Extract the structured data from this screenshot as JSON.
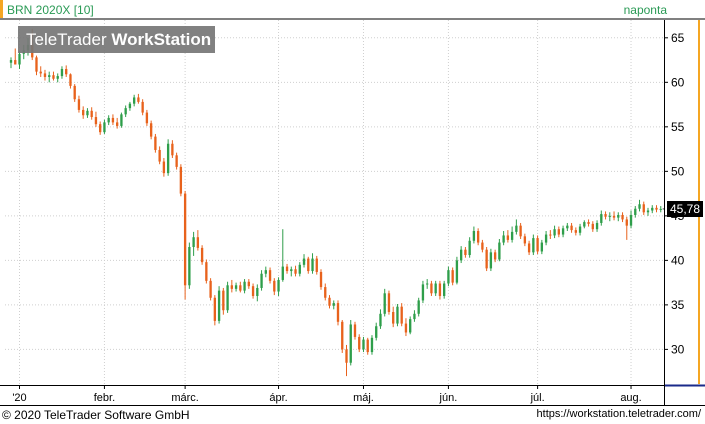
{
  "header": {
    "symbol": "BRN 2020X [10]",
    "interval": "naponta"
  },
  "logo": {
    "brand": "TeleTrader",
    "product": "WorkStation"
  },
  "footer": {
    "copyright": "© 2020 TeleTrader Software GmbH",
    "url": "https://workstation.teletrader.com/"
  },
  "colors": {
    "up": "#2e9e4a",
    "down": "#e8621c",
    "accent": "#f5a623",
    "grid": "#cfcfcf"
  },
  "chart_data": {
    "type": "candlestick",
    "ylim": [
      26,
      67
    ],
    "yticks": [
      30,
      35,
      40,
      45,
      50,
      55,
      60,
      65
    ],
    "last_price_label": "45,78",
    "x_labels": [
      {
        "label": "'20",
        "index": 2
      },
      {
        "label": "febr.",
        "index": 22
      },
      {
        "label": "márc.",
        "index": 41
      },
      {
        "label": "ápr.",
        "index": 63
      },
      {
        "label": "máj.",
        "index": 83
      },
      {
        "label": "jún.",
        "index": 103
      },
      {
        "label": "júl.",
        "index": 124
      },
      {
        "label": "aug.",
        "index": 146
      }
    ],
    "candles": [
      [
        62.2,
        62.8,
        61.6,
        62.5
      ],
      [
        62.5,
        63.8,
        62.0,
        62.0
      ],
      [
        62.0,
        63.5,
        61.5,
        63.2
      ],
      [
        63.2,
        64.2,
        62.6,
        63.6
      ],
      [
        63.6,
        65.0,
        63.0,
        64.2
      ],
      [
        64.2,
        66.0,
        62.5,
        62.8
      ],
      [
        62.8,
        63.0,
        60.8,
        61.2
      ],
      [
        61.2,
        61.8,
        60.6,
        61.0
      ],
      [
        61.0,
        61.4,
        60.2,
        60.6
      ],
      [
        60.6,
        61.2,
        60.0,
        60.8
      ],
      [
        60.8,
        61.2,
        60.2,
        60.4
      ],
      [
        60.4,
        61.0,
        60.0,
        60.7
      ],
      [
        60.7,
        61.8,
        60.4,
        61.5
      ],
      [
        61.5,
        61.9,
        60.6,
        60.9
      ],
      [
        60.9,
        61.0,
        59.3,
        59.6
      ],
      [
        59.6,
        59.8,
        57.8,
        58.1
      ],
      [
        58.1,
        58.5,
        56.6,
        56.9
      ],
      [
        56.9,
        57.3,
        55.9,
        56.3
      ],
      [
        56.3,
        57.1,
        56.0,
        56.8
      ],
      [
        56.8,
        57.2,
        55.8,
        56.1
      ],
      [
        56.1,
        56.7,
        55.0,
        55.3
      ],
      [
        55.3,
        55.6,
        54.1,
        54.4
      ],
      [
        54.4,
        55.8,
        54.2,
        55.5
      ],
      [
        55.5,
        56.3,
        55.2,
        56.0
      ],
      [
        56.0,
        56.4,
        55.2,
        55.5
      ],
      [
        55.5,
        56.0,
        54.8,
        55.1
      ],
      [
        55.1,
        56.6,
        54.9,
        56.4
      ],
      [
        56.4,
        57.4,
        56.1,
        57.1
      ],
      [
        57.1,
        57.8,
        56.8,
        57.6
      ],
      [
        57.6,
        58.6,
        57.3,
        58.3
      ],
      [
        58.3,
        58.7,
        57.6,
        57.8
      ],
      [
        57.8,
        58.1,
        56.3,
        56.6
      ],
      [
        56.6,
        56.9,
        55.1,
        55.4
      ],
      [
        55.4,
        55.7,
        53.6,
        53.9
      ],
      [
        53.9,
        54.2,
        52.1,
        52.4
      ],
      [
        52.4,
        52.8,
        50.8,
        51.1
      ],
      [
        51.1,
        51.5,
        49.4,
        49.8
      ],
      [
        49.8,
        53.6,
        49.5,
        53.1
      ],
      [
        53.1,
        53.5,
        51.5,
        51.8
      ],
      [
        51.8,
        52.1,
        50.2,
        50.5
      ],
      [
        50.5,
        50.8,
        47.2,
        47.5
      ],
      [
        47.5,
        47.8,
        35.6,
        37.2
      ],
      [
        37.2,
        42.0,
        36.8,
        41.5
      ],
      [
        41.5,
        43.2,
        40.5,
        42.6
      ],
      [
        42.6,
        43.4,
        41.1,
        41.4
      ],
      [
        41.4,
        41.7,
        39.5,
        39.8
      ],
      [
        39.8,
        40.1,
        37.4,
        37.7
      ],
      [
        37.7,
        38.0,
        35.5,
        35.8
      ],
      [
        35.8,
        36.1,
        32.7,
        33.2
      ],
      [
        33.2,
        37.1,
        32.9,
        36.6
      ],
      [
        36.6,
        36.9,
        33.9,
        34.4
      ],
      [
        34.4,
        37.6,
        34.1,
        37.2
      ],
      [
        37.2,
        37.8,
        36.4,
        36.8
      ],
      [
        36.8,
        37.5,
        36.5,
        37.2
      ],
      [
        37.2,
        37.6,
        36.4,
        36.6
      ],
      [
        36.6,
        37.9,
        36.3,
        37.6
      ],
      [
        37.6,
        37.9,
        36.8,
        37.1
      ],
      [
        37.1,
        37.4,
        35.7,
        36.0
      ],
      [
        36.0,
        37.3,
        35.4,
        36.9
      ],
      [
        36.9,
        38.9,
        36.6,
        38.5
      ],
      [
        38.5,
        39.3,
        38.1,
        38.9
      ],
      [
        38.9,
        39.2,
        37.4,
        37.7
      ],
      [
        37.7,
        38.0,
        36.1,
        36.5
      ],
      [
        36.5,
        38.1,
        36.0,
        37.8
      ],
      [
        37.8,
        43.5,
        37.6,
        39.3
      ],
      [
        39.3,
        39.6,
        38.5,
        38.8
      ],
      [
        38.8,
        39.3,
        38.2,
        39.0
      ],
      [
        39.0,
        39.4,
        38.2,
        38.5
      ],
      [
        38.5,
        39.8,
        38.2,
        39.5
      ],
      [
        39.5,
        40.7,
        39.2,
        40.2
      ],
      [
        40.2,
        40.4,
        38.5,
        38.8
      ],
      [
        38.8,
        40.8,
        38.5,
        40.2
      ],
      [
        40.2,
        40.5,
        38.4,
        38.7
      ],
      [
        38.7,
        39.0,
        36.7,
        37.0
      ],
      [
        37.0,
        37.4,
        35.5,
        35.8
      ],
      [
        35.8,
        36.1,
        34.6,
        34.9
      ],
      [
        34.9,
        35.5,
        34.5,
        35.2
      ],
      [
        35.2,
        35.5,
        32.7,
        33.1
      ],
      [
        33.1,
        33.3,
        29.6,
        30.0
      ],
      [
        30.0,
        30.5,
        27.0,
        28.5
      ],
      [
        28.5,
        33.3,
        28.2,
        32.8
      ],
      [
        32.8,
        33.1,
        31.1,
        31.4
      ],
      [
        31.4,
        31.7,
        29.7,
        30.0
      ],
      [
        30.0,
        31.4,
        29.7,
        31.1
      ],
      [
        31.1,
        31.3,
        29.4,
        29.7
      ],
      [
        29.7,
        31.6,
        29.4,
        31.3
      ],
      [
        31.3,
        33.0,
        31.0,
        32.6
      ],
      [
        32.6,
        34.5,
        32.3,
        34.0
      ],
      [
        34.0,
        36.8,
        33.7,
        36.3
      ],
      [
        36.3,
        36.6,
        33.9,
        34.2
      ],
      [
        34.2,
        34.8,
        32.5,
        32.9
      ],
      [
        32.9,
        35.1,
        32.6,
        34.8
      ],
      [
        34.8,
        35.2,
        32.6,
        32.9
      ],
      [
        32.9,
        33.5,
        31.5,
        31.9
      ],
      [
        31.9,
        33.7,
        31.7,
        33.4
      ],
      [
        33.4,
        34.4,
        33.1,
        34.0
      ],
      [
        34.0,
        35.8,
        33.7,
        35.5
      ],
      [
        35.5,
        37.7,
        35.2,
        37.3
      ],
      [
        37.3,
        37.9,
        36.8,
        37.4
      ],
      [
        37.4,
        37.7,
        36.0,
        36.3
      ],
      [
        36.3,
        37.7,
        36.0,
        37.4
      ],
      [
        37.4,
        37.7,
        35.6,
        36.0
      ],
      [
        36.0,
        37.7,
        35.7,
        37.4
      ],
      [
        37.4,
        39.3,
        37.1,
        38.9
      ],
      [
        38.9,
        39.2,
        37.2,
        37.5
      ],
      [
        37.5,
        40.4,
        37.3,
        40.0
      ],
      [
        40.0,
        41.6,
        39.7,
        41.2
      ],
      [
        41.2,
        41.5,
        40.3,
        40.6
      ],
      [
        40.6,
        42.6,
        40.3,
        42.2
      ],
      [
        42.2,
        43.8,
        41.9,
        43.3
      ],
      [
        43.3,
        43.6,
        41.7,
        42.0
      ],
      [
        42.0,
        42.3,
        40.9,
        41.2
      ],
      [
        41.2,
        41.5,
        38.8,
        39.1
      ],
      [
        39.1,
        41.3,
        38.8,
        40.9
      ],
      [
        40.9,
        41.2,
        39.8,
        40.1
      ],
      [
        40.1,
        42.4,
        39.9,
        42.0
      ],
      [
        42.0,
        43.3,
        41.7,
        42.8
      ],
      [
        42.8,
        43.4,
        42.0,
        42.3
      ],
      [
        42.3,
        43.8,
        42.0,
        43.2
      ],
      [
        43.2,
        44.6,
        42.9,
        43.9
      ],
      [
        43.9,
        44.2,
        42.4,
        42.7
      ],
      [
        42.7,
        43.0,
        41.6,
        41.9
      ],
      [
        41.9,
        42.2,
        40.6,
        40.9
      ],
      [
        40.9,
        42.9,
        40.6,
        42.5
      ],
      [
        42.5,
        42.8,
        40.7,
        41.0
      ],
      [
        41.0,
        42.3,
        40.7,
        42.0
      ],
      [
        42.0,
        43.3,
        41.7,
        42.9
      ],
      [
        42.9,
        43.4,
        42.4,
        42.8
      ],
      [
        42.8,
        43.9,
        42.5,
        43.5
      ],
      [
        43.5,
        43.8,
        42.6,
        42.9
      ],
      [
        42.9,
        43.9,
        42.6,
        43.6
      ],
      [
        43.6,
        44.2,
        43.3,
        43.9
      ],
      [
        43.9,
        44.2,
        43.1,
        43.4
      ],
      [
        43.4,
        43.7,
        42.8,
        43.1
      ],
      [
        43.1,
        44.1,
        42.8,
        43.8
      ],
      [
        43.8,
        44.5,
        43.6,
        44.3
      ],
      [
        44.3,
        44.6,
        43.8,
        44.1
      ],
      [
        44.1,
        44.4,
        43.2,
        43.5
      ],
      [
        43.5,
        44.5,
        43.2,
        44.2
      ],
      [
        44.2,
        45.6,
        43.9,
        45.2
      ],
      [
        45.2,
        45.5,
        44.6,
        44.9
      ],
      [
        44.9,
        45.4,
        44.4,
        45.0
      ],
      [
        45.0,
        45.5,
        44.5,
        44.8
      ],
      [
        44.8,
        45.4,
        44.4,
        45.1
      ],
      [
        45.1,
        45.4,
        44.3,
        44.6
      ],
      [
        44.6,
        44.9,
        42.3,
        43.9
      ],
      [
        43.9,
        45.6,
        43.6,
        45.1
      ],
      [
        45.1,
        46.1,
        44.8,
        45.8
      ],
      [
        45.8,
        46.8,
        45.5,
        46.3
      ],
      [
        46.3,
        46.6,
        45.1,
        45.4
      ],
      [
        45.4,
        45.9,
        45.0,
        45.6
      ],
      [
        45.6,
        46.2,
        45.3,
        45.9
      ],
      [
        45.9,
        46.2,
        45.4,
        45.7
      ],
      [
        45.7,
        46.1,
        45.4,
        45.78
      ]
    ]
  }
}
